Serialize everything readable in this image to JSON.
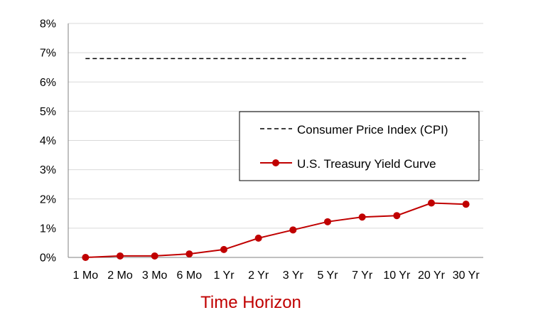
{
  "chart_data": {
    "type": "line",
    "title": "",
    "xlabel": "Time Horizon",
    "ylabel": "",
    "categories": [
      "1 Mo",
      "2 Mo",
      "3 Mo",
      "6 Mo",
      "1 Yr",
      "2 Yr",
      "3 Yr",
      "5 Yr",
      "7 Yr",
      "10 Yr",
      "20 Yr",
      "30 Yr"
    ],
    "ylim": [
      0,
      8
    ],
    "y_ticks": [
      "0%",
      "1%",
      "2%",
      "3%",
      "4%",
      "5%",
      "6%",
      "7%",
      "8%"
    ],
    "grid": "horizontal",
    "legend_position": "right-center",
    "series": [
      {
        "name": "Consumer Price Index (CPI)",
        "style": "dashed",
        "color": "#000000",
        "values": [
          6.8,
          6.8,
          6.8,
          6.8,
          6.8,
          6.8,
          6.8,
          6.8,
          6.8,
          6.8,
          6.8,
          6.8
        ]
      },
      {
        "name": "U.S. Treasury Yield Curve",
        "style": "solid-markers",
        "color": "#c00000",
        "values": [
          0.0,
          0.05,
          0.05,
          0.12,
          0.27,
          0.66,
          0.94,
          1.22,
          1.38,
          1.43,
          1.86,
          1.82
        ]
      }
    ],
    "colors": {
      "xlabel": "#c00000",
      "grid": "#d9d9d9",
      "axis": "#808080"
    }
  }
}
